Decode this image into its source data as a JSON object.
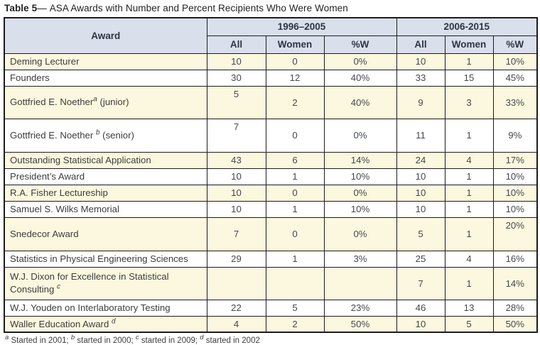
{
  "title": {
    "prefix": "Table 5",
    "dash": "—",
    "text": "ASA Awards with Number and Percent Recipients Who Were Women"
  },
  "colors": {
    "header_bg": "#d9dfeb",
    "stripe_bg": "#fcf8df",
    "border": "#1c1c1c",
    "header_text": "#2e3442",
    "body_text": "#44484f"
  },
  "header": {
    "award": "Award",
    "periods": [
      "1996–2005",
      "2006-2015"
    ],
    "subcols": [
      "All",
      "Women",
      "%W"
    ]
  },
  "rows": [
    {
      "name_parts": [
        {
          "t": "text",
          "v": "Deming Lecturer"
        }
      ],
      "values": [
        "10",
        "0",
        "0%",
        "10",
        "1",
        "10%"
      ]
    },
    {
      "name_parts": [
        {
          "t": "text",
          "v": "Founders"
        }
      ],
      "values": [
        "30",
        "12",
        "40%",
        "33",
        "15",
        "45%"
      ]
    },
    {
      "name_parts": [
        {
          "t": "text",
          "v": "Gottfried E. Noether"
        },
        {
          "t": "sup",
          "v": "a"
        },
        {
          "t": "text",
          "v": " (junior)"
        }
      ],
      "values": [
        "5",
        "2",
        "40%",
        "9",
        "3",
        "33%"
      ]
    },
    {
      "name_parts": [
        {
          "t": "text",
          "v": "Gottfried E. Noether "
        },
        {
          "t": "sup",
          "v": "b"
        },
        {
          "t": "text",
          "v": " (senior)"
        }
      ],
      "values": [
        "7",
        "0",
        "0%",
        "11",
        "1",
        "9%"
      ]
    },
    {
      "name_parts": [
        {
          "t": "text",
          "v": "Outstanding Statistical Application"
        }
      ],
      "values": [
        "43",
        "6",
        "14%",
        "24",
        "4",
        "17%"
      ]
    },
    {
      "name_parts": [
        {
          "t": "text",
          "v": "President’s Award"
        }
      ],
      "values": [
        "10",
        "1",
        "10%",
        "10",
        "1",
        "10%"
      ]
    },
    {
      "name_parts": [
        {
          "t": "text",
          "v": "R.A. Fisher Lectureship"
        }
      ],
      "values": [
        "10",
        "0",
        "0%",
        "10",
        "1",
        "10%"
      ]
    },
    {
      "name_parts": [
        {
          "t": "text",
          "v": "Samuel S. Wilks Memorial"
        }
      ],
      "values": [
        "10",
        "1",
        "10%",
        "10",
        "1",
        "10%"
      ]
    },
    {
      "name_parts": [
        {
          "t": "text",
          "v": "Snedecor Award"
        }
      ],
      "values": [
        "7",
        "0",
        "0%",
        "5",
        "1",
        "20%"
      ]
    },
    {
      "name_parts": [
        {
          "t": "text",
          "v": "Statistics in Physical Engineering Sciences"
        }
      ],
      "values": [
        "29",
        "1",
        "3%",
        "25",
        "4",
        "16%"
      ]
    },
    {
      "name_parts": [
        {
          "t": "text",
          "v": "W.J. Dixon for Excellence in Statistical Consulting "
        },
        {
          "t": "sup",
          "v": "c"
        }
      ],
      "values": [
        "",
        "",
        "",
        "7",
        "1",
        "14%"
      ]
    },
    {
      "name_parts": [
        {
          "t": "text",
          "v": "W.J. Youden on Interlaboratory Testing"
        }
      ],
      "values": [
        "22",
        "5",
        "23%",
        "46",
        "13",
        "28%"
      ]
    },
    {
      "name_parts": [
        {
          "t": "text",
          "v": "Waller Education Award "
        },
        {
          "t": "sup",
          "v": "d"
        }
      ],
      "values": [
        "4",
        "2",
        "50%",
        "10",
        "5",
        "50%"
      ]
    }
  ],
  "footnote": {
    "parts": [
      {
        "sup": "a",
        "text": " Started in 2001; "
      },
      {
        "sup": "b",
        "text": " started in 2000; "
      },
      {
        "sup": "c",
        "text": " started in 2009; "
      },
      {
        "sup": "d",
        "text": " started in 2002"
      }
    ]
  }
}
